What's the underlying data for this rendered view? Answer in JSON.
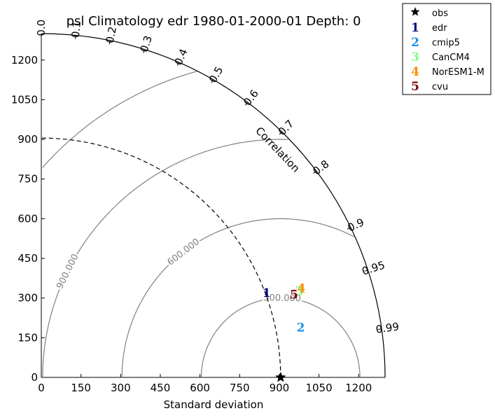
{
  "chart_data": {
    "type": "taylor_diagram",
    "title": "psl Climatology edr 1980-01-2000-01 Depth: 0",
    "xlabel": "Standard deviation",
    "correlation_label": "Correlation",
    "std_range": [
      0,
      1300
    ],
    "std_ticks": [
      0,
      150,
      300,
      450,
      600,
      750,
      900,
      1050,
      1200
    ],
    "correlation_ticks": [
      0.0,
      0.1,
      0.2,
      0.3,
      0.4,
      0.5,
      0.6,
      0.7,
      0.8,
      0.9,
      0.95,
      0.99
    ],
    "reference": {
      "name": "obs",
      "std": 905
    },
    "rms_contours": [
      300,
      600,
      900,
      1200
    ],
    "rms_contour_labels": [
      "300.000",
      "600.000",
      "900.000",
      "1200.000"
    ],
    "points": [
      {
        "label": "1",
        "name": "edr",
        "std": 910,
        "corr": 0.936,
        "color": "#00007f"
      },
      {
        "label": "2",
        "name": "cmip5",
        "std": 999,
        "corr": 0.982,
        "color": "#1e90e6"
      },
      {
        "label": "3",
        "name": "CanCM4",
        "std": 1029,
        "corr": 0.948,
        "color": "#7fff7f"
      },
      {
        "label": "4",
        "name": "NorESM1-M",
        "std": 1040,
        "corr": 0.946,
        "color": "#ff8c00"
      },
      {
        "label": "5",
        "name": "cvu",
        "std": 1006,
        "corr": 0.95,
        "color": "#7f0000"
      }
    ],
    "legend": {
      "placement": "top-right",
      "items": [
        {
          "symbol": "★",
          "text": "obs",
          "color": "#000000"
        },
        {
          "symbol": "1",
          "text": "edr",
          "color": "#00007f"
        },
        {
          "symbol": "2",
          "text": "cmip5",
          "color": "#1e90e6"
        },
        {
          "symbol": "3",
          "text": "CanCM4",
          "color": "#7fff7f"
        },
        {
          "symbol": "4",
          "text": "NorESM1-M",
          "color": "#ff8c00"
        },
        {
          "symbol": "5",
          "text": "cvu",
          "color": "#7f0000"
        }
      ]
    }
  }
}
